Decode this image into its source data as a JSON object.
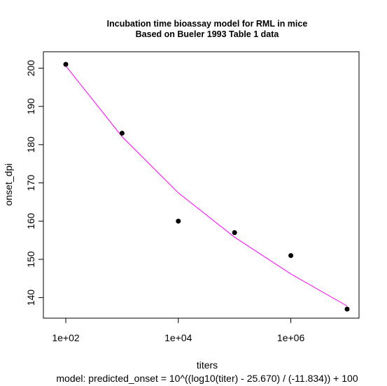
{
  "chart_data": {
    "type": "scatter",
    "title": "Incubation time bioassay model for RML in mice",
    "subtitle": "Based on Bueler 1993 Table 1 data",
    "xlabel": "titers",
    "ylabel": "onset_dpi",
    "footer": "model: predicted_onset = 10^((log10(titer) - 25.670) / (-11.834)) + 100",
    "x_scale": "log10",
    "xlim": [
      100,
      10000000
    ],
    "ylim": [
      137,
      201
    ],
    "x_ticks": [
      {
        "value": 100,
        "label": "1e+02"
      },
      {
        "value": 10000,
        "label": "1e+04"
      },
      {
        "value": 1000000,
        "label": "1e+06"
      }
    ],
    "y_ticks": [
      {
        "value": 140,
        "label": "140"
      },
      {
        "value": 150,
        "label": "150"
      },
      {
        "value": 160,
        "label": "160"
      },
      {
        "value": 170,
        "label": "170"
      },
      {
        "value": 180,
        "label": "180"
      },
      {
        "value": 190,
        "label": "190"
      },
      {
        "value": 200,
        "label": "200"
      }
    ],
    "points": {
      "x": [
        100,
        1000,
        10000,
        100000,
        1000000,
        10000000
      ],
      "y": [
        201,
        183,
        160,
        157,
        151,
        137
      ],
      "color": "#000000"
    },
    "model_curve": {
      "x": [
        100,
        1000,
        10000,
        100000,
        1000000,
        10000000
      ],
      "y": [
        200.6,
        182.1,
        167.4,
        155.8,
        146.2,
        137.8
      ],
      "color": "#ff00ff"
    },
    "grid": false,
    "legend": "none"
  }
}
